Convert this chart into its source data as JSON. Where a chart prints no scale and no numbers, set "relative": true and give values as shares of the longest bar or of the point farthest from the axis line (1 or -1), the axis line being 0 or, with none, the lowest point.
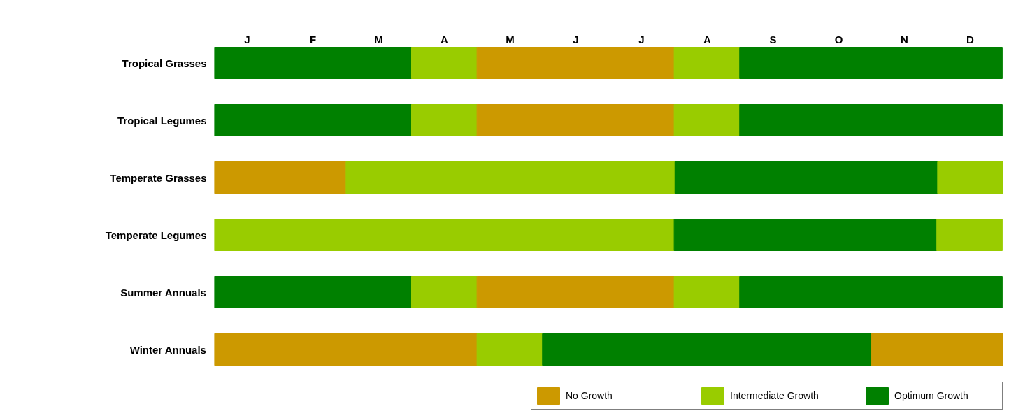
{
  "chart_data": {
    "type": "bar",
    "orientation": "horizontal",
    "relative": true,
    "stacked": true,
    "categories": [
      "Tropical Grasses",
      "Tropical Legumes",
      "Temperate Grasses",
      "Temperate Legumes",
      "Summer Annuals",
      "Winter Annuals"
    ],
    "annotations": [
      "J",
      "F",
      "M",
      "A",
      "M",
      "J",
      "J",
      "A",
      "S",
      "O",
      "N",
      "D"
    ],
    "series": [
      {
        "colors": [
          "#008000",
          "#008000",
          "#cc9900",
          "#99cc00",
          "#008000",
          "#cc9900"
        ],
        "values": [
          0.25,
          0.25,
          0.167,
          0.583,
          0.25,
          0.333
        ]
      },
      {
        "colors": [
          "#99cc00",
          "#99cc00",
          "#99cc00",
          "#008000",
          "#99cc00",
          "#99cc00"
        ],
        "values": [
          0.083,
          0.083,
          0.417,
          0.333,
          0.083,
          0.083
        ]
      },
      {
        "colors": [
          "#cc9900",
          "#cc9900",
          "#008000",
          "#99cc00",
          "#cc9900",
          "#008000"
        ],
        "values": [
          0.25,
          0.25,
          0.333,
          0.083,
          0.25,
          0.417
        ]
      },
      {
        "colors": [
          "#99cc00",
          "#99cc00",
          "#99cc00",
          null,
          "#99cc00",
          "#cc9900"
        ],
        "values": [
          0.083,
          0.083,
          0.083,
          null,
          0.083,
          0.167
        ]
      },
      {
        "colors": [
          "#008000",
          "#008000",
          null,
          null,
          "#008000",
          null
        ],
        "values": [
          0.333,
          0.333,
          null,
          null,
          0.333,
          null
        ]
      },
      {
        "name": "No Growth",
        "color": "#cc9900",
        "values": [
          null,
          null,
          null,
          null,
          null,
          null
        ]
      },
      {
        "name": "Intermediate Growth",
        "color": "#99cc00",
        "values": [
          null,
          null,
          null,
          null,
          null,
          null
        ]
      },
      {
        "name": "Optimum Growth",
        "color": "#008000",
        "values": [
          null,
          null,
          null,
          null,
          null,
          null
        ]
      }
    ],
    "legend": "bottom right"
  }
}
